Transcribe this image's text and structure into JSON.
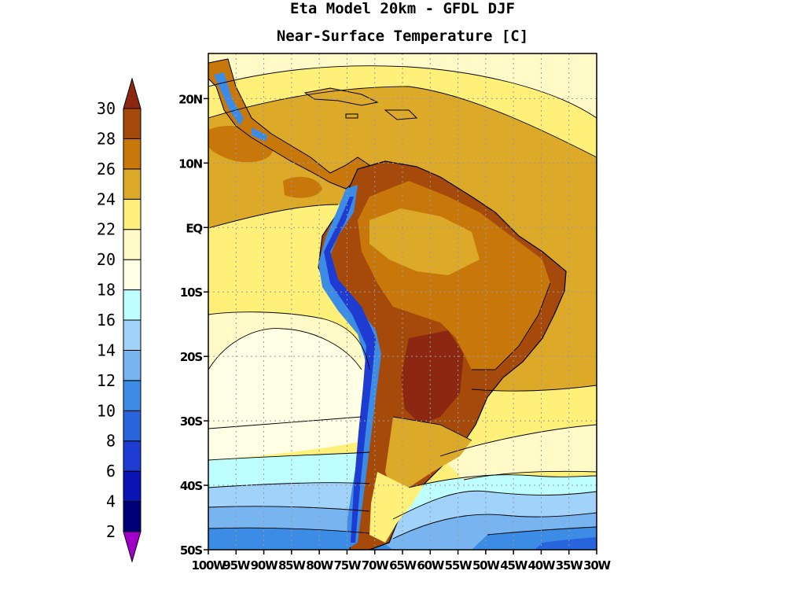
{
  "title": "Eta Model 20km - GFDL DJF",
  "subtitle": "Near-Surface Temperature [C]",
  "colorbar": {
    "levels": [
      2,
      4,
      6,
      8,
      10,
      12,
      14,
      16,
      18,
      20,
      22,
      24,
      26,
      28,
      30
    ],
    "labels": [
      "2",
      "4",
      "6",
      "8",
      "10",
      "12",
      "14",
      "16",
      "18",
      "20",
      "22",
      "24",
      "26",
      "28",
      "30"
    ],
    "colors": [
      "#a000c8",
      "#000078",
      "#0a14b4",
      "#1e3cd2",
      "#2864dc",
      "#3c8ce6",
      "#78b4f0",
      "#a0d2fa",
      "#beffff",
      "#ffffe6",
      "#fffac8",
      "#fff07a",
      "#dcaa28",
      "#c8780a",
      "#a54a0a",
      "#8c2812"
    ]
  },
  "map": {
    "lon_range": [
      -100,
      -30
    ],
    "lat_range": [
      -50,
      27
    ],
    "lat_ticks": [
      {
        "lat": 20,
        "label": "20N"
      },
      {
        "lat": 10,
        "label": "10N"
      },
      {
        "lat": 0,
        "label": "EQ"
      },
      {
        "lat": -10,
        "label": "10S"
      },
      {
        "lat": -20,
        "label": "20S"
      },
      {
        "lat": -30,
        "label": "30S"
      },
      {
        "lat": -40,
        "label": "40S"
      },
      {
        "lat": -50,
        "label": "50S"
      }
    ],
    "lon_ticks": [
      {
        "lon": -100,
        "label": "100W"
      },
      {
        "lon": -95,
        "label": "95W"
      },
      {
        "lon": -90,
        "label": "90W"
      },
      {
        "lon": -85,
        "label": "85W"
      },
      {
        "lon": -80,
        "label": "80W"
      },
      {
        "lon": -75,
        "label": "75W"
      },
      {
        "lon": -70,
        "label": "70W"
      },
      {
        "lon": -65,
        "label": "65W"
      },
      {
        "lon": -60,
        "label": "60W"
      },
      {
        "lon": -55,
        "label": "55W"
      },
      {
        "lon": -50,
        "label": "50W"
      },
      {
        "lon": -45,
        "label": "45W"
      },
      {
        "lon": -40,
        "label": "40W"
      },
      {
        "lon": -35,
        "label": "35W"
      },
      {
        "lon": -30,
        "label": "30W"
      }
    ]
  }
}
